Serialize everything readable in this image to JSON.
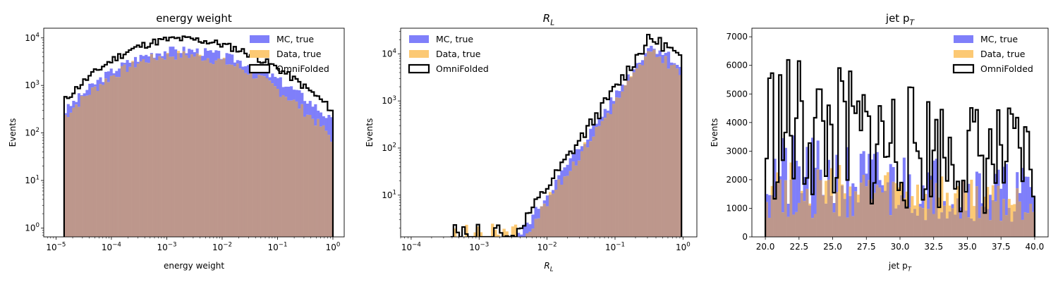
{
  "colors": {
    "mc": "#7f7ffa",
    "data": "#fcc974",
    "overlap": "#bd978c",
    "omni": "#000000"
  },
  "chart_data": [
    {
      "type": "histogram",
      "title": "energy weight",
      "title_style": "plain",
      "xlabel": "energy weight",
      "xlabel_style": "plain",
      "ylabel": "Events",
      "xscale": "log",
      "yscale": "log",
      "xlim": [
        6e-06,
        1.6
      ],
      "ylim": [
        0.65,
        16000
      ],
      "xticks": [
        {
          "v": 1e-05,
          "base": "10",
          "exp": "−5"
        },
        {
          "v": 0.0001,
          "base": "10",
          "exp": "−4"
        },
        {
          "v": 0.001,
          "base": "10",
          "exp": "−3"
        },
        {
          "v": 0.01,
          "base": "10",
          "exp": "−2"
        },
        {
          "v": 0.1,
          "base": "10",
          "exp": "−1"
        },
        {
          "v": 1,
          "base": "10",
          "exp": "0"
        }
      ],
      "yticks": [
        {
          "v": 1,
          "base": "10",
          "exp": "0"
        },
        {
          "v": 10,
          "base": "10",
          "exp": "1"
        },
        {
          "v": 100,
          "base": "10",
          "exp": "2"
        },
        {
          "v": 1000,
          "base": "10",
          "exp": "3"
        },
        {
          "v": 10000,
          "base": "10",
          "exp": "4"
        }
      ],
      "bin_range": [
        1.4e-05,
        1.0
      ],
      "bin_count": 100,
      "legend_position": "upper right",
      "legend": [
        "MC, true",
        "Data, true",
        "OmniFolded"
      ],
      "series": [
        {
          "name": "MC, true",
          "shape": "lognormal",
          "peak": 5600,
          "center": 0.0017,
          "sigma_left": 0.85,
          "sigma_right": 1.05,
          "noise": 0.22,
          "seed": 3
        },
        {
          "name": "Data, true",
          "shape": "lognormal",
          "peak": 4400,
          "center": 0.0017,
          "sigma_left": 0.85,
          "sigma_right": 0.97,
          "noise": 0.25,
          "seed": 7
        },
        {
          "name": "OmniFolded",
          "shape": "lognormal",
          "peak": 9500,
          "center": 0.0017,
          "sigma_left": 0.85,
          "sigma_right": 1.05,
          "noise": 0.18,
          "seed": 11
        }
      ]
    },
    {
      "type": "histogram",
      "title": "R",
      "title_sub": "L",
      "title_style": "math",
      "xlabel": "R",
      "xlabel_sub": "L",
      "xlabel_style": "math",
      "ylabel": "Events",
      "xscale": "log",
      "yscale": "log",
      "xlim": [
        7e-05,
        1.6
      ],
      "ylim": [
        1.3,
        35000
      ],
      "xticks": [
        {
          "v": 0.0001,
          "base": "10",
          "exp": "−4"
        },
        {
          "v": 0.001,
          "base": "10",
          "exp": "−3"
        },
        {
          "v": 0.01,
          "base": "10",
          "exp": "−2"
        },
        {
          "v": 0.1,
          "base": "10",
          "exp": "−1"
        },
        {
          "v": 1,
          "base": "10",
          "exp": "0"
        }
      ],
      "yticks": [
        {
          "v": 10,
          "base": "10",
          "exp": "1"
        },
        {
          "v": 100,
          "base": "10",
          "exp": "2"
        },
        {
          "v": 1000,
          "base": "10",
          "exp": "3"
        },
        {
          "v": 10000,
          "base": "10",
          "exp": "4"
        }
      ],
      "bin_range": [
        0.00038,
        0.95
      ],
      "bin_count": 80,
      "legend_position": "upper left",
      "legend": [
        "MC, true",
        "Data, true",
        "OmniFolded"
      ],
      "series": [
        {
          "name": "MC, true",
          "shape": "rising",
          "peak": 14000,
          "center": 0.31,
          "slope": 2.1,
          "fall": 0.33,
          "noise": 0.25,
          "seed": 5
        },
        {
          "name": "Data, true",
          "shape": "rising",
          "peak": 10000,
          "center": 0.31,
          "slope": 2.1,
          "fall": 0.33,
          "noise": 0.28,
          "seed": 9
        },
        {
          "name": "OmniFolded",
          "shape": "rising",
          "peak": 20000,
          "center": 0.31,
          "slope": 2.1,
          "fall": 0.33,
          "noise": 0.3,
          "seed": 13
        }
      ]
    },
    {
      "type": "histogram",
      "title": "jet p",
      "title_sub": "T",
      "title_style": "plain",
      "xlabel": "jet p",
      "xlabel_sub": "T",
      "xlabel_style": "plain",
      "ylabel": "Events",
      "xscale": "linear",
      "yscale": "linear",
      "xlim": [
        19.0,
        41.0
      ],
      "ylim": [
        0,
        7300
      ],
      "xticks": [
        {
          "v": 20,
          "label": "20.0"
        },
        {
          "v": 22.5,
          "label": "22.5"
        },
        {
          "v": 25,
          "label": "25.0"
        },
        {
          "v": 27.5,
          "label": "27.5"
        },
        {
          "v": 30,
          "label": "30.0"
        },
        {
          "v": 32.5,
          "label": "32.5"
        },
        {
          "v": 35,
          "label": "35.0"
        },
        {
          "v": 37.5,
          "label": "37.5"
        },
        {
          "v": 40,
          "label": "40.0"
        }
      ],
      "yticks": [
        {
          "v": 0,
          "label": "0"
        },
        {
          "v": 1000,
          "label": "1000"
        },
        {
          "v": 2000,
          "label": "2000"
        },
        {
          "v": 3000,
          "label": "3000"
        },
        {
          "v": 4000,
          "label": "4000"
        },
        {
          "v": 5000,
          "label": "5000"
        },
        {
          "v": 6000,
          "label": "6000"
        },
        {
          "v": 7000,
          "label": "7000"
        }
      ],
      "bin_range": [
        20.0,
        40.0
      ],
      "bin_count": 100,
      "legend_position": "upper right",
      "legend": [
        "MC, true",
        "Data, true",
        "OmniFolded"
      ],
      "series": [
        {
          "name": "MC, true",
          "shape": "noisy",
          "level": 2200,
          "slope": -35,
          "noise": 0.42,
          "seed": 21
        },
        {
          "name": "Data, true",
          "shape": "noisy",
          "level": 1700,
          "slope": -30,
          "noise": 0.4,
          "seed": 27
        },
        {
          "name": "OmniFolded",
          "shape": "noisy",
          "level": 3900,
          "slope": -70,
          "noise": 0.45,
          "seed": 33
        }
      ]
    }
  ]
}
